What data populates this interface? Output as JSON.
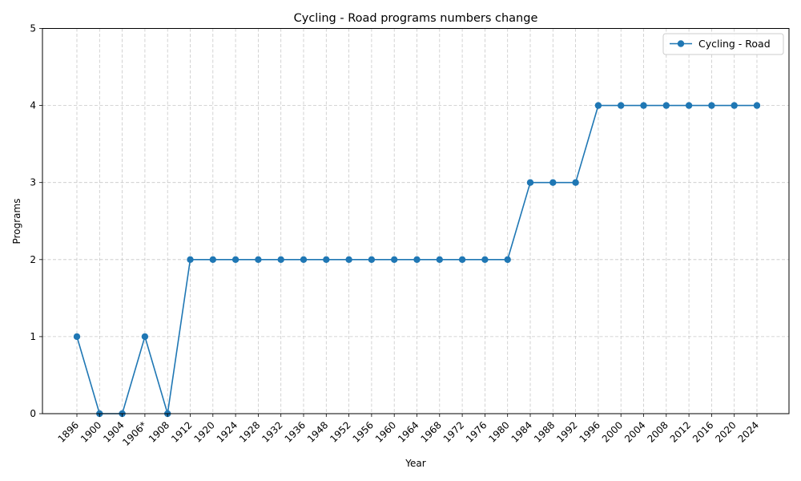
{
  "chart_data": {
    "type": "line",
    "title": "Cycling - Road programs numbers change",
    "xlabel": "Year",
    "ylabel": "Programs",
    "categories": [
      "1896",
      "1900",
      "1904",
      "1906*",
      "1908",
      "1912",
      "1920",
      "1924",
      "1928",
      "1932",
      "1936",
      "1948",
      "1952",
      "1956",
      "1960",
      "1964",
      "1968",
      "1972",
      "1976",
      "1980",
      "1984",
      "1988",
      "1992",
      "1996",
      "2000",
      "2004",
      "2008",
      "2012",
      "2016",
      "2020",
      "2024"
    ],
    "series": [
      {
        "name": "Cycling - Road",
        "values": [
          1,
          0,
          0,
          1,
          0,
          2,
          2,
          2,
          2,
          2,
          2,
          2,
          2,
          2,
          2,
          2,
          2,
          2,
          2,
          2,
          3,
          3,
          3,
          4,
          4,
          4,
          4,
          4,
          4,
          4,
          4
        ],
        "color": "#1f77b4",
        "marker": "circle"
      }
    ],
    "ylim": [
      0,
      5
    ],
    "yticks": [
      0,
      1,
      2,
      3,
      4,
      5
    ],
    "grid": true,
    "legend_position": "top-right",
    "colors": {
      "grid": "#c8c8c8",
      "axis": "#000000"
    }
  }
}
